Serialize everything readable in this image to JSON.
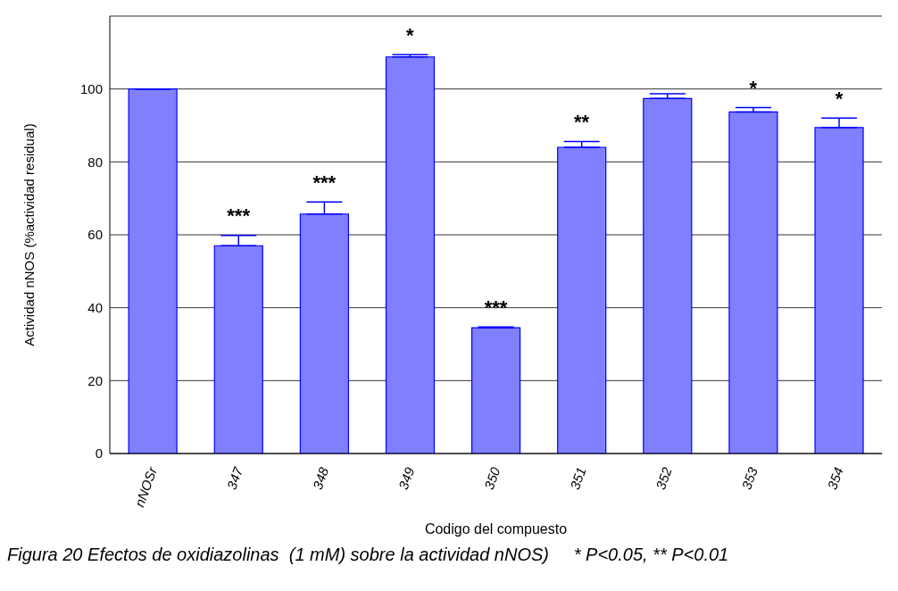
{
  "chart_data": {
    "type": "bar",
    "xlabel": "Codigo del compuesto",
    "ylabel": "Actividad nNOS (%actividad residual)",
    "categories": [
      "nNOSr",
      "347",
      "348",
      "349",
      "350",
      "351",
      "352",
      "353",
      "354"
    ],
    "values": [
      100,
      57,
      65.7,
      108.8,
      34.5,
      84,
      97.4,
      93.7,
      89.4
    ],
    "errors": [
      null,
      2.8,
      3.3,
      0.6,
      0.2,
      1.6,
      1.3,
      1.2,
      2.6
    ],
    "color": "#8080ff",
    "ylim": [
      0,
      120
    ],
    "yticks": [
      0,
      20,
      40,
      60,
      80,
      100
    ],
    "grid": "y",
    "annotations": [
      {
        "text": "***",
        "x": "347",
        "y": 59.8
      },
      {
        "text": "***",
        "x": "348",
        "y": 69
      },
      {
        "text": "*",
        "x": "349",
        "y": 109.4
      },
      {
        "text": "***",
        "x": "350",
        "y": 34.7
      },
      {
        "text": "**",
        "x": "351",
        "y": 85.6
      },
      {
        "text": "*",
        "x": "353",
        "y": 94.9
      },
      {
        "text": "*",
        "x": "354",
        "y": 92
      },
      "Figura 20 Efectos de oxidiazolinas  (1 mM) sobre la actividad nNOS)     * P<0.05, ** P<0.01"
    ]
  }
}
